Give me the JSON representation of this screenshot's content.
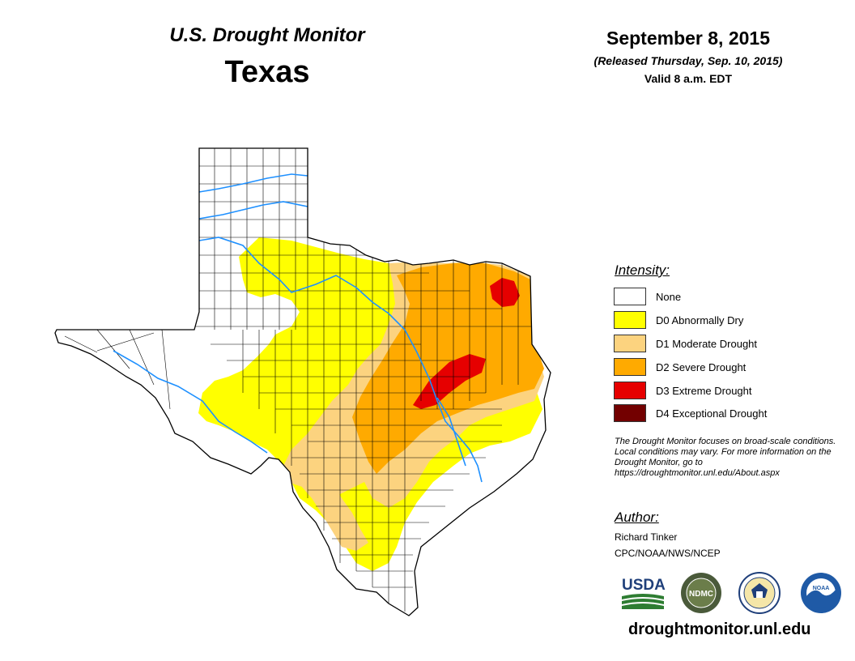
{
  "header": {
    "brand_title": "U.S. Drought Monitor",
    "state": "Texas",
    "date": "September 8, 2015",
    "released": "(Released Thursday, Sep. 10, 2015)",
    "valid": "Valid 8 a.m. EDT"
  },
  "legend": {
    "heading": "Intensity:",
    "items": [
      {
        "label": "None",
        "color": "#ffffff"
      },
      {
        "label": "D0 Abnormally Dry",
        "color": "#ffff00"
      },
      {
        "label": "D1 Moderate Drought",
        "color": "#fcd37f"
      },
      {
        "label": "D2 Severe Drought",
        "color": "#ffaa00"
      },
      {
        "label": "D3 Extreme Drought",
        "color": "#e60000"
      },
      {
        "label": "D4 Exceptional Drought",
        "color": "#730000"
      }
    ]
  },
  "note": "The Drought Monitor focuses on broad-scale conditions. Local conditions may vary. For more information on the Drought Monitor, go to https://droughtmonitor.unl.edu/About.aspx",
  "author": {
    "heading": "Author:",
    "name": "Richard Tinker",
    "org": "CPC/NOAA/NWS/NCEP"
  },
  "logos": {
    "usda": "USDA",
    "ndmc": "NDMC"
  },
  "url": "droughtmonitor.unl.edu",
  "map_colors": {
    "river": "#1e90ff",
    "county_line": "#000000"
  }
}
